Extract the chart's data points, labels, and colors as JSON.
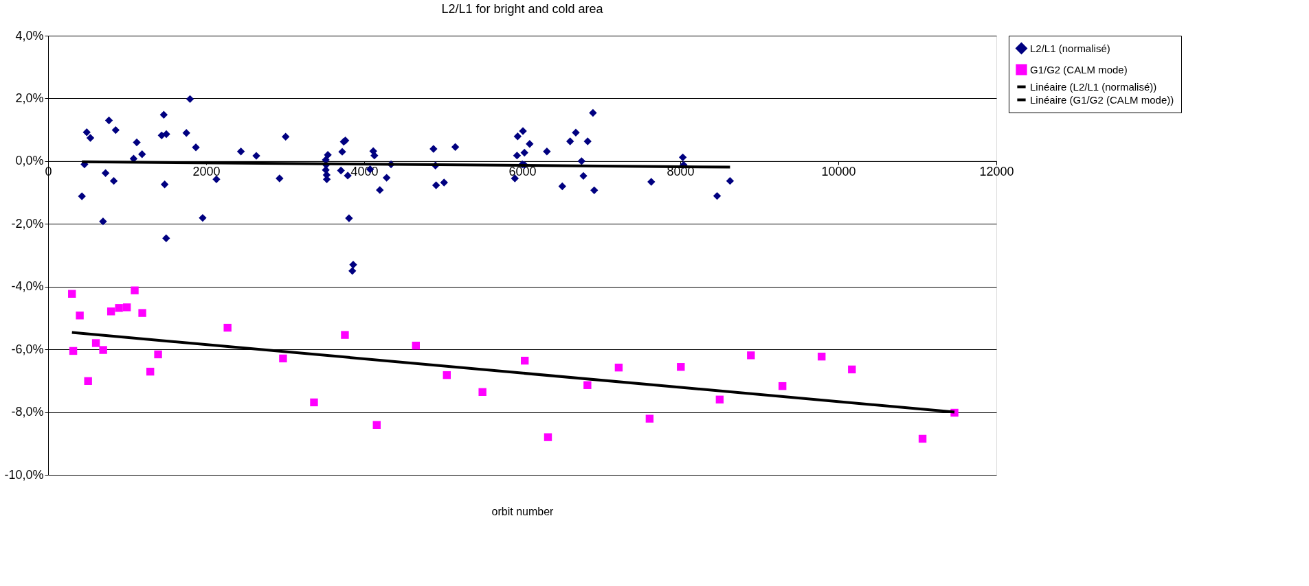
{
  "chart_data": {
    "type": "scatter",
    "title": "L2/L1 for  bright and cold area",
    "xlabel": "orbit number",
    "xlim": [
      0,
      12000
    ],
    "xticks": [
      0,
      2000,
      4000,
      6000,
      8000,
      10000,
      12000
    ],
    "ylim": [
      -10,
      4
    ],
    "yticks": [
      {
        "value": -10,
        "label": "-10,0%"
      },
      {
        "value": -8,
        "label": "-8,0%"
      },
      {
        "value": -6,
        "label": "-6,0%"
      },
      {
        "value": -4,
        "label": "-4,0%"
      },
      {
        "value": -2,
        "label": "-2,0%"
      },
      {
        "value": 0,
        "label": "0,0%"
      },
      {
        "value": 2,
        "label": "2,0%"
      },
      {
        "value": 4,
        "label": "4,0%"
      }
    ],
    "grid": "y",
    "legend": "right",
    "series": [
      {
        "name": "L2/L1 (normalisé)",
        "marker": "diamond",
        "color": "#000080",
        "x": [
          428,
          460,
          489,
          535,
          695,
          727,
          770,
          831,
          855,
          1082,
          1122,
          1189,
          1437,
          1464,
          1475,
          1496,
          1494,
          1750,
          1796,
          1870,
          1956,
          2130,
          2440,
          2635,
          2929,
          3006,
          3514,
          3540,
          3519,
          3514,
          3525,
          3527,
          3722,
          3706,
          3741,
          3762,
          3792,
          3808,
          3861,
          3850,
          4075,
          4115,
          4129,
          4198,
          4284,
          4340,
          4877,
          4902,
          4910,
          5011,
          5153,
          5907,
          5934,
          5942,
          6009,
          6001,
          6028,
          6028,
          6094,
          6312,
          6507,
          6606,
          6678,
          6751,
          6774,
          6828,
          6895,
          6911,
          7633,
          8032,
          8042,
          8466,
          8630
        ],
        "values": [
          -1.12,
          -0.1,
          0.92,
          0.74,
          -1.92,
          -0.38,
          1.3,
          -0.63,
          0.99,
          0.08,
          0.6,
          0.22,
          0.82,
          1.48,
          -0.74,
          0.86,
          -2.46,
          0.9,
          1.98,
          0.44,
          -1.81,
          -0.58,
          0.31,
          0.17,
          -0.55,
          0.78,
          0.04,
          0.2,
          -0.12,
          -0.28,
          -0.44,
          -0.58,
          0.3,
          -0.3,
          0.62,
          0.66,
          -0.46,
          -1.82,
          -3.3,
          -3.5,
          -0.26,
          0.32,
          0.18,
          -0.92,
          -0.53,
          -0.1,
          0.39,
          -0.14,
          -0.77,
          -0.68,
          0.45,
          -0.55,
          0.18,
          0.79,
          0.96,
          -0.1,
          0.27,
          -0.12,
          0.55,
          0.31,
          -0.8,
          0.63,
          0.91,
          0.0,
          -0.47,
          0.63,
          1.54,
          -0.93,
          -0.66,
          0.12,
          -0.12,
          -1.11,
          -0.63
        ]
      },
      {
        "name": "G1/G2 (CALM mode)",
        "marker": "square",
        "color": "#ff00ff",
        "x": [
          302,
          318,
          401,
          506,
          605,
          697,
          797,
          897,
          997,
          1096,
          1192,
          1293,
          1392,
          2271,
          2973,
          3365,
          3756,
          4159,
          4655,
          5046,
          5497,
          6032,
          6326,
          6825,
          7221,
          7612,
          8007,
          8499,
          8894,
          9293,
          9789,
          10172,
          11066,
          11470
        ],
        "values": [
          -4.23,
          -6.05,
          -4.92,
          -7.01,
          -5.8,
          -6.02,
          -4.79,
          -4.68,
          -4.66,
          -4.12,
          -4.84,
          -6.71,
          -6.16,
          -5.31,
          -6.29,
          -7.69,
          -5.54,
          -8.41,
          -5.88,
          -6.82,
          -7.36,
          -6.36,
          -8.8,
          -7.14,
          -6.58,
          -8.21,
          -6.56,
          -7.6,
          -6.19,
          -7.17,
          -6.23,
          -6.64,
          -8.85,
          -8.02
        ]
      },
      {
        "name": "Linéaire (L2/L1 (normalisé))",
        "type": "line",
        "marker": "none",
        "color": "#000000",
        "x": [
          428,
          8630
        ],
        "values": [
          -0.02,
          -0.19
        ]
      },
      {
        "name": "Linéaire (G1/G2 (CALM mode))",
        "type": "line",
        "marker": "none",
        "color": "#000000",
        "x": [
          302,
          11470
        ],
        "values": [
          -5.46,
          -8.0
        ]
      }
    ]
  }
}
